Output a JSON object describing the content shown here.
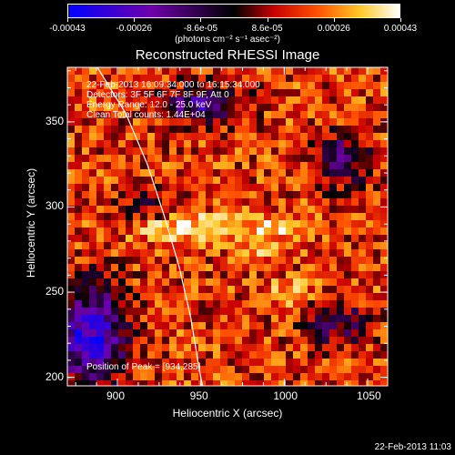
{
  "colorbar": {
    "ticks": [
      "-0.00043",
      "-0.00026",
      "-8.6e-05",
      "8.6e-05",
      "0.00026",
      "0.00043"
    ],
    "units_text": "(photons cm⁻² s⁻¹ asec⁻²)"
  },
  "chart_data": {
    "type": "heatmap",
    "title": "Reconstructed RHESSI Image",
    "xlabel": "Heliocentric X (arcsec)",
    "ylabel": "Heliocentric Y (arcsec)",
    "xlim": [
      870,
      1062
    ],
    "ylim": [
      195,
      382
    ],
    "xticks": [
      900,
      950,
      1000,
      1050
    ],
    "yticks": [
      200,
      250,
      300,
      350
    ],
    "zlim": [
      -0.00043,
      0.00043
    ],
    "colorscale": "red-temperature",
    "annotations": [
      "22-Feb-2013 16:09:34.000 to 16:15:34.000",
      "Detectors: 3F 5F 6F 7F 8F 9F, Att 0",
      "Energy Range: 12.0 - 25.0 keV",
      "Clean    Total counts: 1.44E+04"
    ],
    "peak_label": "Position of Peak = [934,285]",
    "peak": [
      934,
      285
    ],
    "limb_curve": [
      [
        888,
        382
      ],
      [
        905,
        355
      ],
      [
        918,
        325
      ],
      [
        928,
        295
      ],
      [
        937,
        265
      ],
      [
        944,
        235
      ],
      [
        949,
        205
      ],
      [
        951,
        195
      ]
    ]
  },
  "footer": {
    "timestamp": "22-Feb-2013 11:03"
  }
}
